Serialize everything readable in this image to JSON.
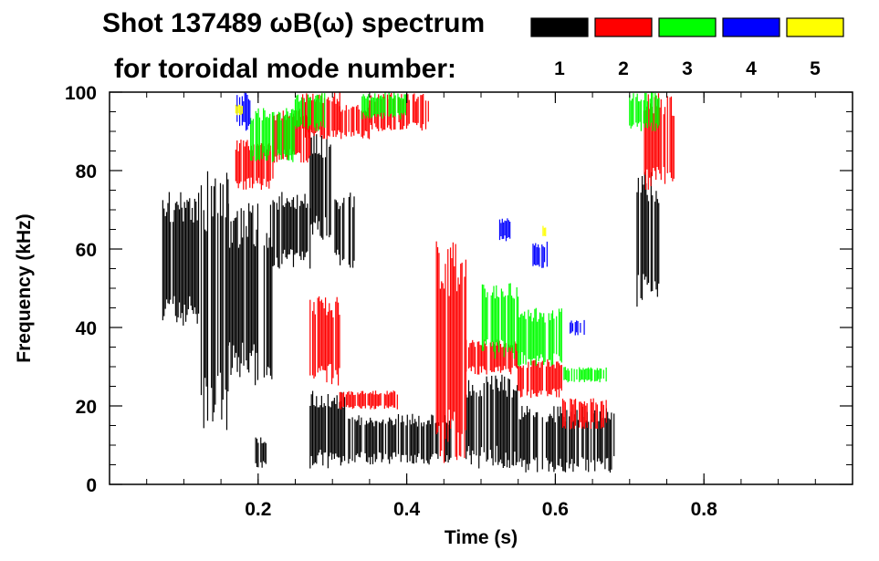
{
  "chart_data": {
    "type": "heatmap",
    "title_line1": "Shot 137489 ωB(ω) spectrum",
    "title_line2": "for toroidal mode number:",
    "xlabel": "Time (s)",
    "ylabel": "Frequency (kHz)",
    "xlim": [
      0.0,
      1.0
    ],
    "ylim": [
      0,
      100
    ],
    "xticks": [
      0.2,
      0.4,
      0.6,
      0.8
    ],
    "xtick_labels": [
      "0.2",
      "0.4",
      "0.6",
      "0.8"
    ],
    "yticks": [
      0,
      20,
      40,
      60,
      80,
      100
    ],
    "ytick_labels": [
      "0",
      "20",
      "40",
      "60",
      "80",
      "100"
    ],
    "legend": [
      {
        "label": "1",
        "color": "#000000"
      },
      {
        "label": "2",
        "color": "#ff0000"
      },
      {
        "label": "3",
        "color": "#00ff00"
      },
      {
        "label": "4",
        "color": "#0000ff"
      },
      {
        "label": "5",
        "color": "#ffff00"
      }
    ],
    "series": [
      {
        "name": "1",
        "color": "#000000",
        "regions": [
          {
            "t": [
              0.07,
              0.12
            ],
            "f": [
              40,
              75
            ]
          },
          {
            "t": [
              0.12,
              0.16
            ],
            "f": [
              12,
              80
            ]
          },
          {
            "t": [
              0.16,
              0.22
            ],
            "f": [
              25,
              72
            ]
          },
          {
            "t": [
              0.22,
              0.27
            ],
            "f": [
              55,
              75
            ]
          },
          {
            "t": [
              0.195,
              0.215
            ],
            "f": [
              4,
              12
            ]
          },
          {
            "t": [
              0.27,
              0.3
            ],
            "f": [
              62,
              90
            ]
          },
          {
            "t": [
              0.3,
              0.33
            ],
            "f": [
              55,
              75
            ]
          },
          {
            "t": [
              0.27,
              0.32
            ],
            "f": [
              4,
              24
            ]
          },
          {
            "t": [
              0.32,
              0.46
            ],
            "f": [
              5,
              18
            ]
          },
          {
            "t": [
              0.48,
              0.55
            ],
            "f": [
              4,
              28
            ]
          },
          {
            "t": [
              0.55,
              0.68
            ],
            "f": [
              3,
              20
            ]
          },
          {
            "t": [
              0.71,
              0.74
            ],
            "f": [
              45,
              80
            ]
          }
        ]
      },
      {
        "name": "2",
        "color": "#ff0000",
        "regions": [
          {
            "t": [
              0.17,
              0.22
            ],
            "f": [
              75,
              88
            ]
          },
          {
            "t": [
              0.22,
              0.27
            ],
            "f": [
              82,
              96
            ]
          },
          {
            "t": [
              0.26,
              0.31
            ],
            "f": [
              88,
              100
            ]
          },
          {
            "t": [
              0.31,
              0.35
            ],
            "f": [
              88,
              97
            ]
          },
          {
            "t": [
              0.35,
              0.43
            ],
            "f": [
              90,
              100
            ]
          },
          {
            "t": [
              0.27,
              0.31
            ],
            "f": [
              25,
              48
            ]
          },
          {
            "t": [
              0.31,
              0.39
            ],
            "f": [
              19,
              24
            ]
          },
          {
            "t": [
              0.44,
              0.48
            ],
            "f": [
              5,
              62
            ]
          },
          {
            "t": [
              0.48,
              0.55
            ],
            "f": [
              28,
              37
            ]
          },
          {
            "t": [
              0.55,
              0.61
            ],
            "f": [
              22,
              32
            ]
          },
          {
            "t": [
              0.61,
              0.67
            ],
            "f": [
              14,
              22
            ]
          },
          {
            "t": [
              0.72,
              0.76
            ],
            "f": [
              75,
              100
            ]
          }
        ]
      },
      {
        "name": "3",
        "color": "#00ff00",
        "regions": [
          {
            "t": [
              0.19,
              0.25
            ],
            "f": [
              82,
              96
            ]
          },
          {
            "t": [
              0.25,
              0.29
            ],
            "f": [
              90,
              100
            ]
          },
          {
            "t": [
              0.34,
              0.4
            ],
            "f": [
              93,
              100
            ]
          },
          {
            "t": [
              0.5,
              0.55
            ],
            "f": [
              32,
              52
            ]
          },
          {
            "t": [
              0.55,
              0.61
            ],
            "f": [
              30,
              45
            ]
          },
          {
            "t": [
              0.61,
              0.67
            ],
            "f": [
              26,
              30
            ]
          },
          {
            "t": [
              0.7,
              0.74
            ],
            "f": [
              90,
              100
            ]
          }
        ]
      },
      {
        "name": "4",
        "color": "#0000ff",
        "regions": [
          {
            "t": [
              0.17,
              0.19
            ],
            "f": [
              90,
              100
            ]
          },
          {
            "t": [
              0.52,
              0.54
            ],
            "f": [
              62,
              68
            ]
          },
          {
            "t": [
              0.57,
              0.59
            ],
            "f": [
              55,
              62
            ]
          },
          {
            "t": [
              0.62,
              0.64
            ],
            "f": [
              38,
              42
            ]
          }
        ]
      },
      {
        "name": "5",
        "color": "#ffff00",
        "regions": [
          {
            "t": [
              0.17,
              0.18
            ],
            "f": [
              94,
              97
            ]
          },
          {
            "t": [
              0.58,
              0.59
            ],
            "f": [
              63,
              66
            ]
          }
        ]
      }
    ]
  }
}
